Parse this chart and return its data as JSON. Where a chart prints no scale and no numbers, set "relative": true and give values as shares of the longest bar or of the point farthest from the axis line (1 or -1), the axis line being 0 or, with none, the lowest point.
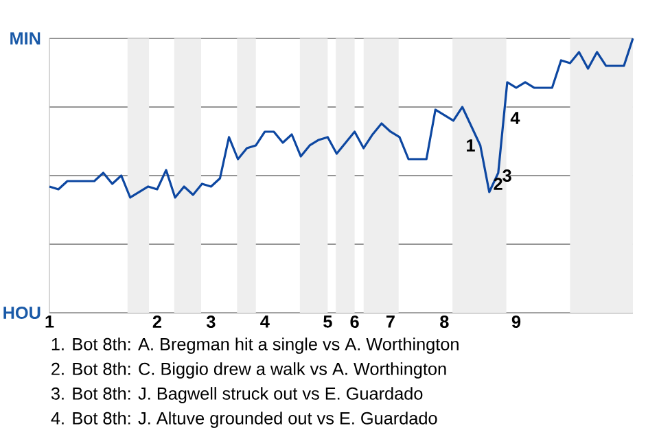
{
  "chart_data": {
    "type": "line",
    "relative": true,
    "categories": [
      "1",
      null,
      null,
      null,
      null,
      null,
      null,
      null,
      null,
      null,
      null,
      null,
      "2",
      null,
      null,
      null,
      null,
      null,
      "3",
      null,
      null,
      null,
      null,
      null,
      "4",
      null,
      null,
      null,
      null,
      null,
      null,
      "5",
      null,
      null,
      "6",
      null,
      null,
      null,
      "7",
      null,
      null,
      null,
      null,
      null,
      "8",
      null,
      null,
      null,
      null,
      null,
      null,
      null,
      "9",
      null,
      null,
      null,
      null,
      null,
      null,
      null,
      null,
      null,
      null,
      null,
      null,
      null
    ],
    "series": [
      {
        "color": "#0d47a1",
        "values": [
          0.46,
          0.45,
          0.48,
          0.48,
          0.48,
          0.48,
          0.51,
          0.47,
          0.5,
          0.42,
          0.44,
          0.46,
          0.45,
          0.52,
          0.42,
          0.46,
          0.43,
          0.47,
          0.46,
          0.49,
          0.64,
          0.56,
          0.6,
          0.61,
          0.66,
          0.66,
          0.62,
          0.65,
          0.57,
          0.61,
          0.63,
          0.64,
          0.58,
          0.62,
          0.66,
          0.6,
          0.65,
          0.69,
          0.66,
          0.64,
          0.56,
          0.56,
          0.56,
          0.74,
          0.72,
          0.7,
          0.75,
          0.68,
          0.61,
          0.44,
          0.51,
          0.84,
          0.82,
          0.84,
          0.82,
          0.82,
          0.82,
          0.92,
          0.91,
          0.95,
          0.89,
          0.95,
          0.9,
          0.9,
          0.9,
          1.0
        ]
      }
    ],
    "grid": "y",
    "marker": "none",
    "line_style": "solid",
    "annotations": [
      "MIN",
      "HOU",
      "1",
      "2",
      "3",
      "4",
      "1. Bot 8th: A. Bregman hit a single vs A. Worthington",
      "2. Bot 8th: C. Biggio drew a walk vs A. Worthington",
      "3. Bot 8th: J. Bagwell struck out vs E. Guardado",
      "4. Bot 8th: J. Altuve grounded out vs E. Guardado"
    ]
  }
}
